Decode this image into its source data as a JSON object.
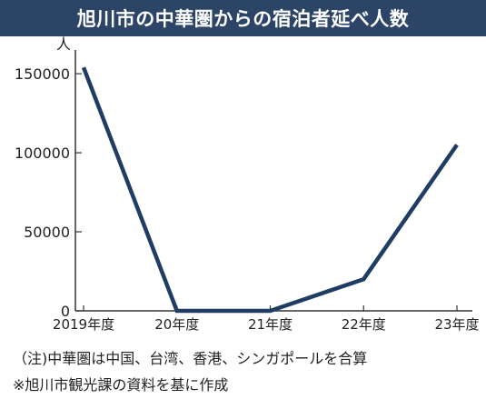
{
  "title": "旭川市の中華圏からの宿泊者延べ人数",
  "notes": [
    "（注)中華圏は中国、台湾、香港、シンガポールを合算",
    "※旭川市観光課の資料を基に作成"
  ],
  "colors": {
    "title_bg": "#2c4466",
    "line": "#1f3d63",
    "axis": "#333333"
  },
  "chart_data": {
    "type": "line",
    "categories": [
      "2019年度",
      "20年度",
      "21年度",
      "22年度",
      "23年度"
    ],
    "series": [
      {
        "values": [
          154000,
          0,
          0,
          20000,
          105000
        ]
      }
    ],
    "ylabel": "人",
    "xlabel": "",
    "ylim": [
      0,
      165000
    ],
    "yticks": [
      0,
      50000,
      100000,
      150000
    ],
    "ytick_labels": [
      "0",
      "50000",
      "100000",
      "150000"
    ],
    "grid": false
  }
}
